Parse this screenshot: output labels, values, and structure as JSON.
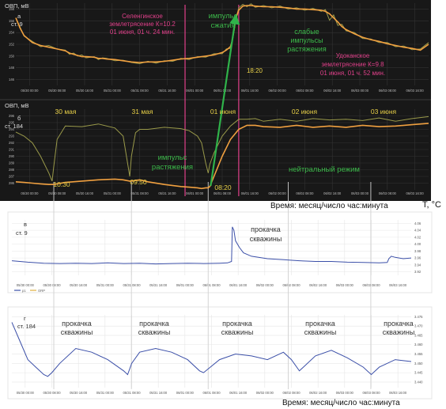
{
  "chart_data": [
    {
      "type": "line",
      "panel": "а",
      "ylabel": "ОВП, мВ",
      "well": "ст. 9",
      "background": "#181818",
      "line_color": "#9a9a4a",
      "trend_color": "#f0a040",
      "ylim": [
        145,
        159
      ],
      "yticks": [
        "146",
        "148",
        "150",
        "152",
        "154",
        "156",
        "158"
      ],
      "xticks": [
        "05/30 00:00",
        "05/30 08:00",
        "05/30 16:00",
        "05/31 00:00",
        "05/31 08:00",
        "05/31 16:00",
        "06/01 00:00",
        "06/01 08:00",
        "06/01 16:00",
        "06/02 00:00",
        "06/02 08:00",
        "06/02 16:00",
        "06/03 00:00",
        "06/03 08:00",
        "06/03 16:00"
      ],
      "x": [
        0,
        0.05,
        0.1,
        0.2,
        0.3,
        0.4,
        0.5,
        0.6,
        0.65,
        0.7,
        0.75,
        0.8,
        0.85,
        0.95,
        1.0,
        1.05,
        1.1,
        1.2,
        1.3,
        1.4,
        1.5,
        1.6,
        1.7,
        1.8,
        1.9,
        2.0,
        2.1,
        2.2,
        2.3,
        2.4,
        2.5,
        2.55,
        2.6,
        2.62,
        2.65,
        2.66,
        2.7,
        2.75,
        2.8,
        2.85,
        2.9,
        3.0,
        3.1,
        3.2,
        3.3,
        3.4,
        3.5,
        3.6,
        3.7,
        3.75,
        3.8,
        3.85,
        3.9,
        3.95,
        4.0,
        4.1,
        4.2,
        4.3,
        4.4,
        4.5,
        4.6,
        4.7,
        4.8,
        4.9,
        5.0
      ],
      "series": [
        {
          "values": [
            156.5,
            154.8,
            153.5,
            152.3,
            151.8,
            151.5,
            151.2,
            150.9,
            150.5,
            150.3,
            150.1,
            149.9,
            149.9,
            149.8,
            149.6,
            149.6,
            149.5,
            149.4,
            149.2,
            149.0,
            148.9,
            149.0,
            149.0,
            149.1,
            149.3,
            149.5,
            149.6,
            149.8,
            150.0,
            150.2,
            150.6,
            151.0,
            151.6,
            152.5,
            155.0,
            156.2,
            157.8,
            158.5,
            158.6,
            158.6,
            158.5,
            158.4,
            158.4,
            158.3,
            158.2,
            158.0,
            158.0,
            157.9,
            157.8,
            157.6,
            157.2,
            156.5,
            155.8,
            155.0,
            154.5,
            153.8,
            153.2,
            152.8,
            152.5,
            152.1,
            151.8,
            151.5,
            151.3,
            151.0,
            152.0
          ]
        },
        {
          "values": [
            156.5,
            155.0,
            153.4,
            152.5,
            151.6,
            151.8,
            151.2,
            151.0,
            150.3,
            150.5,
            150.0,
            150.2,
            149.7,
            149.9,
            149.4,
            149.7,
            149.6,
            149.2,
            149.3,
            148.9,
            148.7,
            149.1,
            148.8,
            149.2,
            149.1,
            149.6,
            149.4,
            149.9,
            149.8,
            150.4,
            150.4,
            151.2,
            151.3,
            152.2,
            155.4,
            156.0,
            158.2,
            158.8,
            158.4,
            158.9,
            158.3,
            158.6,
            158.2,
            158.5,
            158.0,
            158.2,
            157.8,
            158.1,
            157.6,
            157.9,
            156.1,
            157.0,
            155.2,
            155.4,
            154.3,
            154.0,
            153.0,
            152.9,
            152.3,
            152.3,
            151.6,
            151.7,
            151.1,
            151.2,
            152.3
          ]
        }
      ],
      "annotations": [
        {
          "text": "Селенгинское",
          "color": "#e0408a"
        },
        {
          "text": "землетрясение К=10.2",
          "color": "#e0408a"
        },
        {
          "text": "01 июня, 01 ч. 24 мин.",
          "color": "#e0408a"
        },
        {
          "text": "импульс",
          "color": "#3cb84a"
        },
        {
          "text": "сжатия",
          "color": "#3cb84a"
        },
        {
          "text": "слабые",
          "color": "#3cb84a"
        },
        {
          "text": "импульсы",
          "color": "#3cb84a"
        },
        {
          "text": "растяжения",
          "color": "#3cb84a"
        },
        {
          "text": "Удоканское",
          "color": "#e0408a"
        },
        {
          "text": "землетрясение К=9.8",
          "color": "#e0408a"
        },
        {
          "text": "01 июня, 01 ч. 52 мин.",
          "color": "#e0408a"
        },
        {
          "text": "18:20",
          "color": "#e8d048"
        }
      ]
    },
    {
      "type": "line",
      "panel": "б",
      "ylabel": "ОВП, мВ",
      "well": "ст. 184",
      "background": "#181818",
      "line_color": "#9a9a4a",
      "trend_color": "#f0a040",
      "ylim": [
        285,
        297
      ],
      "yticks": [
        "286",
        "287",
        "288",
        "289",
        "290",
        "291",
        "292",
        "293",
        "294",
        "295",
        "296"
      ],
      "xticks": [
        "05/30 00:00",
        "05/30 08:00",
        "05/30 16:00",
        "05/31 00:00",
        "05/31 08:00",
        "05/31 16:00",
        "06/01 00:00",
        "06/01 08:00",
        "06/01 16:00",
        "06/02 00:00",
        "06/02 08:00",
        "06/02 16:00",
        "06/03 00:00",
        "06/03 08:00",
        "06/03 16:00"
      ],
      "xlabel": "Время: месяц/число час:минута",
      "days": [
        "30 мая",
        "31 мая",
        "01 июня",
        "02 июня",
        "03 июня"
      ],
      "x": [
        0,
        0.1,
        0.2,
        0.3,
        0.4,
        0.44,
        0.46,
        0.5,
        0.6,
        0.8,
        1.0,
        1.2,
        1.3,
        1.38,
        1.4,
        1.45,
        1.5,
        1.6,
        1.8,
        2.0,
        2.1,
        2.2,
        2.25,
        2.3,
        2.33,
        2.35,
        2.4,
        2.5,
        2.6,
        2.7,
        2.8,
        2.9,
        3.0,
        3.2,
        3.4,
        3.6,
        3.8,
        4.0,
        4.2,
        4.4,
        4.6,
        4.8,
        5.0
      ],
      "series": [
        {
          "values": [
            293.6,
            293.0,
            292.0,
            290.0,
            287.5,
            286.3,
            288.5,
            292.5,
            294.5,
            294.4,
            294.8,
            294.2,
            293.0,
            287.0,
            290.0,
            293.5,
            294.0,
            294.0,
            294.3,
            294.1,
            293.8,
            293.0,
            292.0,
            289.0,
            287.5,
            288.8,
            290.5,
            293.0,
            294.5,
            295.5,
            295.5,
            295.6,
            295.2,
            295.5,
            295.2,
            295.6,
            295.4,
            295.5,
            295.3,
            295.7,
            295.2,
            295.6,
            295.9
          ]
        },
        {
          "values": [
            286.2,
            286.1,
            286.0,
            285.9,
            285.8,
            285.8,
            285.8,
            285.9,
            286.1,
            286.3,
            286.5,
            286.6,
            286.5,
            286.3,
            286.3,
            286.4,
            286.5,
            286.2,
            285.8,
            285.5,
            285.4,
            285.3,
            285.2,
            285.3,
            285.3,
            285.5,
            287.0,
            290.0,
            292.5,
            294.0,
            294.6,
            294.6,
            294.4,
            294.3,
            294.6,
            294.3,
            294.5,
            294.3,
            294.6,
            294.4,
            294.5,
            294.7,
            294.9
          ]
        }
      ],
      "annotations": [
        {
          "text": "10:30",
          "color": "#e8d048"
        },
        {
          "text": "09:50",
          "color": "#e8d048"
        },
        {
          "text": "08:20",
          "color": "#e8d048"
        },
        {
          "text": "импульс",
          "color": "#3cb84a"
        },
        {
          "text": "растяжения",
          "color": "#3cb84a"
        },
        {
          "text": "нейтральный режим",
          "color": "#3cb84a"
        }
      ]
    },
    {
      "type": "line",
      "panel": "в",
      "well": "ст. 9",
      "ylabel": "T, °C",
      "background": "#ffffff",
      "line_color": "#3b4fa8",
      "ylim": [
        3.91,
        4.07
      ],
      "yticks": [
        "3.92",
        "3.94",
        "3.96",
        "3.98",
        "4.00",
        "4.02",
        "4.04",
        "4.06"
      ],
      "xticks": [
        "05/30 00:00",
        "05/30 08:00",
        "05/30 16:00",
        "05/31 00:00",
        "05/31 08:00",
        "05/31 16:00",
        "06/01 00:00",
        "06/01 08:00",
        "06/01 16:00",
        "06/02 00:00",
        "06/02 08:00",
        "06/02 16:00",
        "06/03 00:00",
        "06/03 08:00",
        "06/03 16:00"
      ],
      "legend": [
        "p1",
        "ORP"
      ],
      "annotations": [
        {
          "text": "прокачка"
        },
        {
          "text": "скважины"
        }
      ],
      "x": [
        0,
        0.2,
        0.4,
        0.6,
        0.8,
        1.0,
        1.2,
        1.4,
        1.6,
        1.8,
        2.0,
        2.2,
        2.4,
        2.6,
        2.7,
        2.75,
        2.76,
        2.78,
        2.8,
        2.85,
        2.9,
        3.0,
        3.2,
        3.4,
        3.6,
        3.8,
        4.0,
        4.2,
        4.4,
        4.6,
        4.7,
        4.72,
        4.75,
        4.8,
        4.9,
        5.0
      ],
      "series": [
        {
          "values": [
            3.952,
            3.948,
            3.945,
            3.944,
            3.945,
            3.944,
            3.946,
            3.944,
            3.945,
            3.943,
            3.944,
            3.945,
            3.944,
            3.945,
            3.946,
            3.95,
            4.05,
            4.04,
            4.01,
            3.99,
            3.975,
            3.965,
            3.958,
            3.955,
            3.952,
            3.95,
            3.95,
            3.948,
            3.947,
            3.946,
            3.947,
            3.958,
            3.965,
            3.962,
            3.958,
            3.96
          ]
        }
      ]
    },
    {
      "type": "line",
      "panel": "г",
      "well": "ст. 184",
      "background": "#ffffff",
      "line_color": "#3b4fa8",
      "ylim": [
        3.437,
        3.476
      ],
      "yticks": [
        "3.440",
        "3.445",
        "3.450",
        "3.455",
        "3.460",
        "3.465",
        "3.470",
        "3.475"
      ],
      "xticks": [
        "05/30 00:00",
        "05/30 08:00",
        "05/30 16:00",
        "05/31 00:00",
        "05/31 08:00",
        "05/31 16:00",
        "06/01 00:00",
        "06/01 08:00",
        "06/01 16:00",
        "06/02 00:00",
        "06/02 08:00",
        "06/02 16:00",
        "06/03 00:00",
        "06/03 08:00",
        "06/03 16:00"
      ],
      "xlabel": "Время: месяц/число час:минута",
      "annotations": [
        {
          "text": "прокачка"
        },
        {
          "text": "скважины"
        }
      ],
      "x": [
        0,
        0.1,
        0.2,
        0.3,
        0.4,
        0.45,
        0.5,
        0.6,
        0.8,
        1.0,
        1.2,
        1.4,
        1.45,
        1.5,
        1.6,
        1.8,
        2.0,
        2.2,
        2.35,
        2.4,
        2.6,
        2.8,
        3.0,
        3.2,
        3.4,
        3.5,
        3.6,
        3.8,
        4.0,
        4.2,
        4.4,
        4.5,
        4.6,
        4.8,
        5.0
      ],
      "series": [
        {
          "values": [
            3.472,
            3.462,
            3.452,
            3.448,
            3.444,
            3.443,
            3.445,
            3.45,
            3.458,
            3.456,
            3.452,
            3.446,
            3.444,
            3.45,
            3.456,
            3.458,
            3.456,
            3.452,
            3.446,
            3.445,
            3.452,
            3.455,
            3.454,
            3.452,
            3.456,
            3.452,
            3.446,
            3.454,
            3.457,
            3.453,
            3.448,
            3.444,
            3.448,
            3.452,
            3.451
          ]
        }
      ]
    }
  ],
  "shared": {
    "pink_line_color": "#e0408a",
    "green_arrow_color": "#2fb34a",
    "guide_line_color": "#d0d0d0"
  }
}
